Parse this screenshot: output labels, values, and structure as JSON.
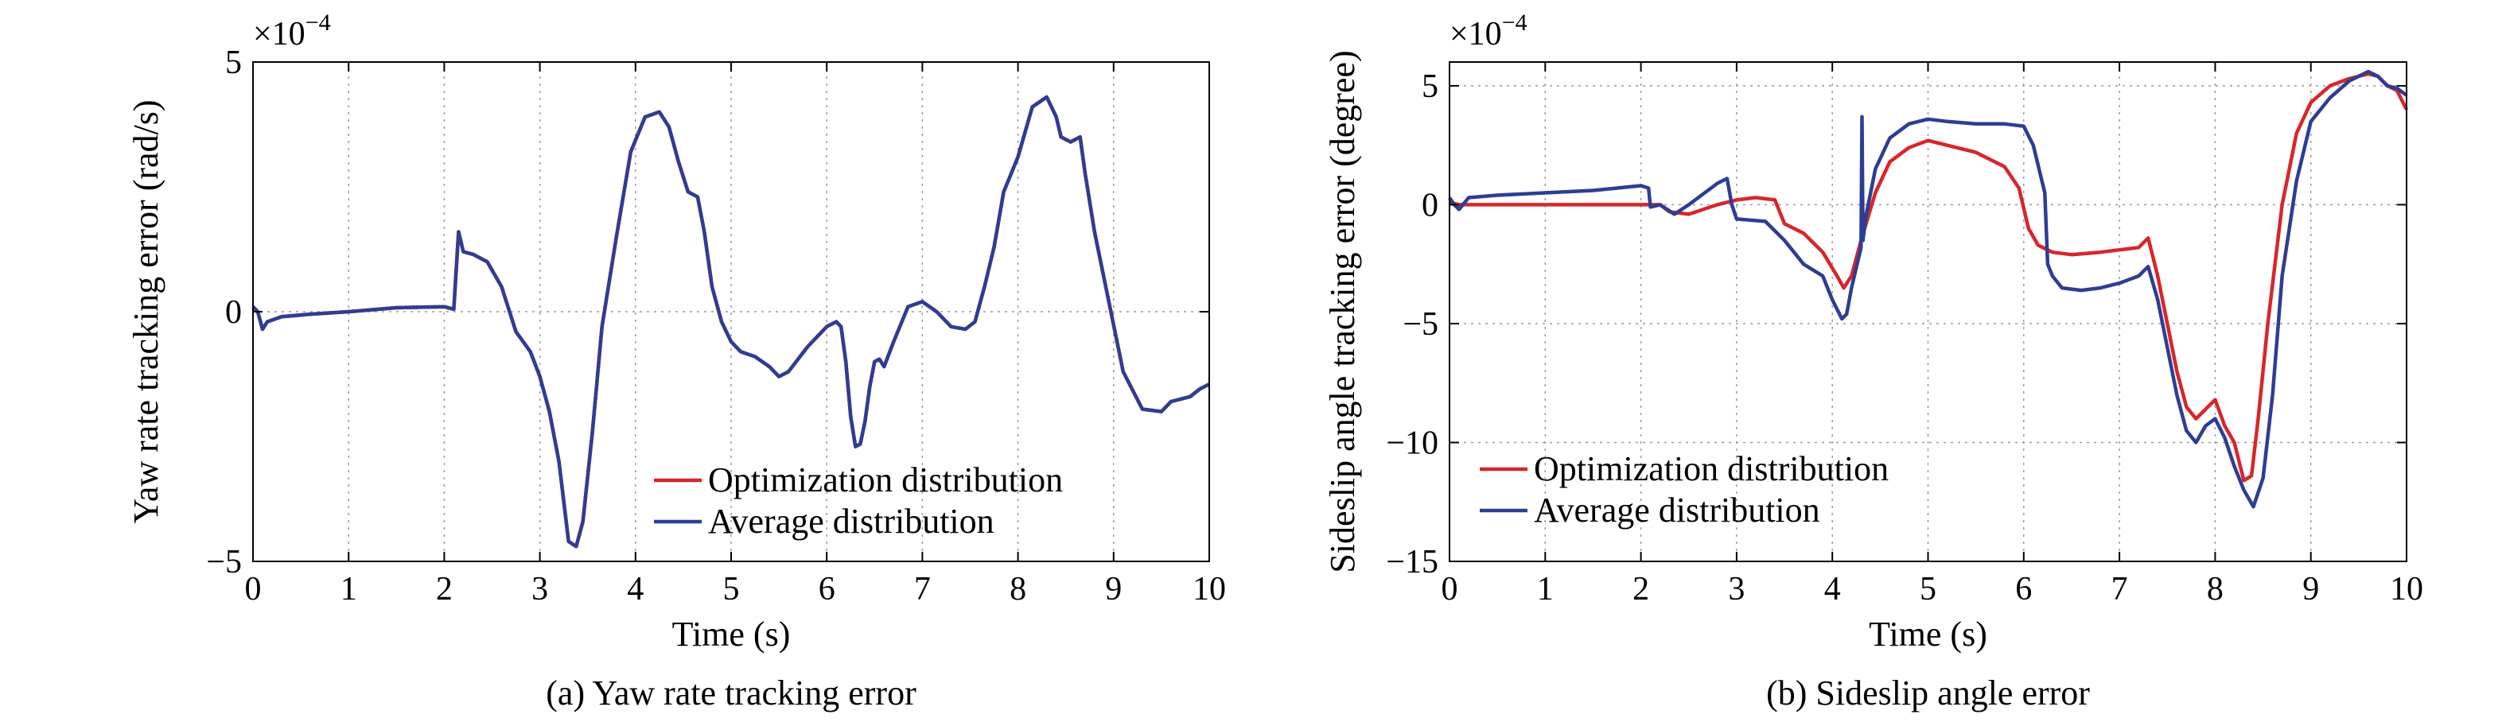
{
  "chart_data": [
    {
      "type": "line",
      "caption": "(a) Yaw rate tracking error",
      "xlabel": "Time (s)",
      "ylabel": "Yaw rate tracking error (rad/s)",
      "y_multiplier": "×10",
      "y_multiplier_exponent": "−4",
      "xlim": [
        0,
        10
      ],
      "ylim": [
        -5,
        5
      ],
      "xticks": [
        0,
        1,
        2,
        3,
        4,
        5,
        6,
        7,
        8,
        9,
        10
      ],
      "xtick_labels": [
        "0",
        "1",
        "2",
        "3",
        "4",
        "5",
        "6",
        "7",
        "8",
        "9",
        "10"
      ],
      "yticks": [
        -5,
        0,
        5
      ],
      "ytick_labels": [
        "−5",
        "0",
        "5"
      ],
      "grid": true,
      "legend_position": "bottom-right",
      "series": [
        {
          "name": "Optimization distribution",
          "color": "#d7262a",
          "x": [
            0,
            0.05,
            0.1,
            0.15,
            0.3,
            0.6,
            1,
            1.5,
            2.0,
            2.1,
            2.15,
            2.2,
            2.3,
            2.45,
            2.6,
            2.75,
            2.9,
            3.0,
            3.1,
            3.2,
            3.3,
            3.38,
            3.45,
            3.55,
            3.65,
            3.8,
            3.95,
            4.1,
            4.25,
            4.35,
            4.45,
            4.55,
            4.65,
            4.72,
            4.8,
            4.9,
            5.0,
            5.1,
            5.25,
            5.4,
            5.5,
            5.6,
            5.8,
            6.0,
            6.1,
            6.15,
            6.2,
            6.25,
            6.3,
            6.35,
            6.4,
            6.45,
            6.5,
            6.55,
            6.6,
            6.7,
            6.85,
            7.0,
            7.15,
            7.3,
            7.45,
            7.55,
            7.65,
            7.75,
            7.85,
            8.0,
            8.15,
            8.3,
            8.4,
            8.45,
            8.55,
            8.65,
            8.7,
            8.8,
            8.95,
            9.1,
            9.3,
            9.5,
            9.6,
            9.7,
            9.8,
            9.9,
            10.0
          ],
          "y": [
            0.1,
            0.0,
            -0.35,
            -0.2,
            -0.1,
            -0.05,
            0.0,
            0.08,
            0.1,
            0.05,
            1.6,
            1.2,
            1.15,
            1.0,
            0.5,
            -0.4,
            -0.8,
            -1.3,
            -2.0,
            -3.0,
            -4.6,
            -4.7,
            -4.2,
            -2.4,
            -0.3,
            1.5,
            3.2,
            3.9,
            4.0,
            3.7,
            3.0,
            2.4,
            2.3,
            1.6,
            0.5,
            -0.2,
            -0.6,
            -0.8,
            -0.9,
            -1.1,
            -1.3,
            -1.2,
            -0.7,
            -0.3,
            -0.2,
            -0.3,
            -1.0,
            -2.1,
            -2.7,
            -2.65,
            -2.2,
            -1.5,
            -1.0,
            -0.95,
            -1.1,
            -0.6,
            0.1,
            0.2,
            0.0,
            -0.3,
            -0.35,
            -0.2,
            0.5,
            1.3,
            2.4,
            3.1,
            4.1,
            4.3,
            3.9,
            3.5,
            3.4,
            3.5,
            2.8,
            1.6,
            0.2,
            -1.2,
            -1.95,
            -2.0,
            -1.8,
            -1.75,
            -1.7,
            -1.55,
            -1.45
          ]
        },
        {
          "name": "Average distribution",
          "color": "#2e3d94",
          "x": [
            0,
            0.05,
            0.1,
            0.15,
            0.3,
            0.6,
            1,
            1.5,
            2.0,
            2.1,
            2.15,
            2.2,
            2.3,
            2.45,
            2.6,
            2.75,
            2.9,
            3.0,
            3.1,
            3.2,
            3.3,
            3.38,
            3.45,
            3.55,
            3.65,
            3.8,
            3.95,
            4.1,
            4.25,
            4.35,
            4.45,
            4.55,
            4.65,
            4.72,
            4.8,
            4.9,
            5.0,
            5.1,
            5.25,
            5.4,
            5.5,
            5.6,
            5.8,
            6.0,
            6.1,
            6.15,
            6.2,
            6.25,
            6.3,
            6.35,
            6.4,
            6.45,
            6.5,
            6.55,
            6.6,
            6.7,
            6.85,
            7.0,
            7.15,
            7.3,
            7.45,
            7.55,
            7.65,
            7.75,
            7.85,
            8.0,
            8.15,
            8.3,
            8.4,
            8.45,
            8.55,
            8.65,
            8.7,
            8.8,
            8.95,
            9.1,
            9.3,
            9.5,
            9.6,
            9.7,
            9.8,
            9.9,
            10.0
          ],
          "y": [
            0.1,
            0.0,
            -0.35,
            -0.2,
            -0.1,
            -0.05,
            0.0,
            0.08,
            0.1,
            0.05,
            1.6,
            1.2,
            1.15,
            1.0,
            0.5,
            -0.4,
            -0.8,
            -1.3,
            -2.0,
            -3.0,
            -4.6,
            -4.7,
            -4.2,
            -2.4,
            -0.3,
            1.5,
            3.2,
            3.9,
            4.0,
            3.7,
            3.0,
            2.4,
            2.3,
            1.6,
            0.5,
            -0.2,
            -0.6,
            -0.8,
            -0.9,
            -1.1,
            -1.3,
            -1.2,
            -0.7,
            -0.3,
            -0.2,
            -0.3,
            -1.0,
            -2.1,
            -2.7,
            -2.65,
            -2.2,
            -1.5,
            -1.0,
            -0.95,
            -1.1,
            -0.6,
            0.1,
            0.2,
            0.0,
            -0.3,
            -0.35,
            -0.2,
            0.5,
            1.3,
            2.4,
            3.1,
            4.1,
            4.3,
            3.9,
            3.5,
            3.4,
            3.5,
            2.8,
            1.6,
            0.2,
            -1.2,
            -1.95,
            -2.0,
            -1.8,
            -1.75,
            -1.7,
            -1.55,
            -1.45
          ]
        }
      ]
    },
    {
      "type": "line",
      "caption": "(b) Sideslip angle error",
      "xlabel": "Time (s)",
      "ylabel": "Sideslip angle tracking error (degree)",
      "y_multiplier": "×10",
      "y_multiplier_exponent": "−4",
      "xlim": [
        0,
        10
      ],
      "ylim": [
        -15,
        6
      ],
      "xticks": [
        0,
        1,
        2,
        3,
        4,
        5,
        6,
        7,
        8,
        9,
        10
      ],
      "xtick_labels": [
        "0",
        "1",
        "2",
        "3",
        "4",
        "5",
        "6",
        "7",
        "8",
        "9",
        "10"
      ],
      "yticks": [
        -15,
        -10,
        -5,
        0,
        5
      ],
      "ytick_labels": [
        "−15",
        "−10",
        "−5",
        "0",
        "5"
      ],
      "grid": true,
      "legend_position": "bottom-left",
      "series": [
        {
          "name": "Optimization distribution",
          "color": "#d7262a",
          "x": [
            0,
            0.1,
            0.2,
            0.5,
            1.0,
            1.5,
            2.0,
            2.2,
            2.3,
            2.5,
            2.8,
            3.0,
            3.2,
            3.4,
            3.5,
            3.7,
            3.9,
            4.05,
            4.12,
            4.2,
            4.3,
            4.45,
            4.6,
            4.8,
            5.0,
            5.2,
            5.5,
            5.8,
            5.95,
            6.05,
            6.15,
            6.3,
            6.5,
            6.8,
            7.0,
            7.2,
            7.3,
            7.4,
            7.5,
            7.6,
            7.7,
            7.8,
            7.9,
            8.0,
            8.1,
            8.2,
            8.3,
            8.38,
            8.45,
            8.55,
            8.7,
            8.85,
            9.0,
            9.2,
            9.4,
            9.6,
            9.7,
            9.8,
            9.9,
            10.0
          ],
          "y": [
            0.1,
            0.0,
            0.0,
            0.0,
            0.0,
            0.0,
            0.0,
            0.0,
            -0.3,
            -0.4,
            0.0,
            0.2,
            0.3,
            0.2,
            -0.8,
            -1.2,
            -2.0,
            -3.0,
            -3.5,
            -3.0,
            -1.5,
            0.5,
            1.8,
            2.4,
            2.7,
            2.5,
            2.2,
            1.6,
            0.7,
            -1.0,
            -1.7,
            -2.0,
            -2.1,
            -2.0,
            -1.9,
            -1.8,
            -1.4,
            -3.0,
            -5.0,
            -7.0,
            -8.5,
            -9.0,
            -8.6,
            -8.2,
            -9.3,
            -10.0,
            -11.6,
            -11.4,
            -9.0,
            -5.0,
            0.0,
            3.0,
            4.3,
            5.0,
            5.3,
            5.5,
            5.4,
            5.0,
            4.8,
            4.0
          ]
        },
        {
          "name": "Average distribution",
          "color": "#2e3d94",
          "x": [
            0,
            0.05,
            0.1,
            0.2,
            0.5,
            1.0,
            1.5,
            2.0,
            2.08,
            2.1,
            2.2,
            2.35,
            2.5,
            2.7,
            2.8,
            2.9,
            2.95,
            3.0,
            3.3,
            3.5,
            3.7,
            3.9,
            4.0,
            4.1,
            4.15,
            4.2,
            4.3,
            4.31,
            4.32,
            4.35,
            4.45,
            4.6,
            4.8,
            5.0,
            5.2,
            5.5,
            5.8,
            6.0,
            6.1,
            6.22,
            6.25,
            6.3,
            6.4,
            6.6,
            6.8,
            7.0,
            7.2,
            7.3,
            7.4,
            7.5,
            7.6,
            7.7,
            7.8,
            7.9,
            8.0,
            8.1,
            8.2,
            8.3,
            8.4,
            8.5,
            8.6,
            8.7,
            8.85,
            9.0,
            9.2,
            9.4,
            9.6,
            9.7,
            9.8,
            9.9,
            10.0
          ],
          "y": [
            0.3,
            0.0,
            -0.2,
            0.3,
            0.4,
            0.5,
            0.6,
            0.8,
            0.7,
            -0.1,
            0.0,
            -0.4,
            0.0,
            0.6,
            0.9,
            1.1,
            0.0,
            -0.6,
            -0.7,
            -1.5,
            -2.5,
            -3.0,
            -4.0,
            -4.8,
            -4.6,
            -3.5,
            -1.8,
            3.7,
            -1.5,
            -0.5,
            1.5,
            2.8,
            3.4,
            3.6,
            3.5,
            3.4,
            3.4,
            3.3,
            2.5,
            0.5,
            -2.5,
            -3.0,
            -3.5,
            -3.6,
            -3.5,
            -3.3,
            -3.0,
            -2.6,
            -4.0,
            -6.0,
            -8.0,
            -9.5,
            -10.0,
            -9.3,
            -9.0,
            -9.8,
            -11.0,
            -12.0,
            -12.7,
            -11.5,
            -8.0,
            -3.0,
            1.0,
            3.5,
            4.5,
            5.2,
            5.6,
            5.4,
            5.0,
            4.9,
            4.6
          ]
        }
      ]
    }
  ]
}
